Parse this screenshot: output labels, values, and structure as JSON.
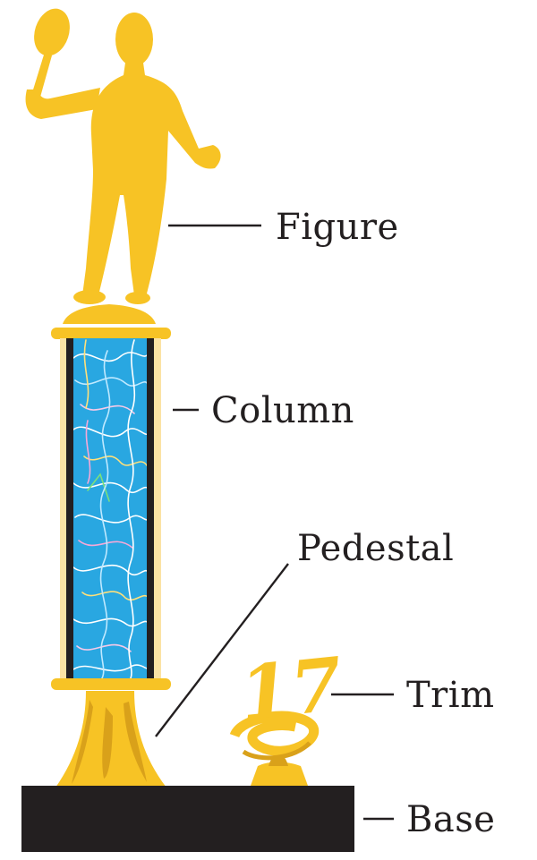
{
  "labels": {
    "figure": "Figure",
    "column": "Column",
    "pedestal": "Pedestal",
    "trim": "Trim",
    "base": "Base"
  },
  "trim_number": "17",
  "colors": {
    "gold": "#f7c325",
    "gold_dark": "#d9a11a",
    "column_blue": "#29a7e1",
    "base_black": "#231f20",
    "line": "#231f20"
  }
}
